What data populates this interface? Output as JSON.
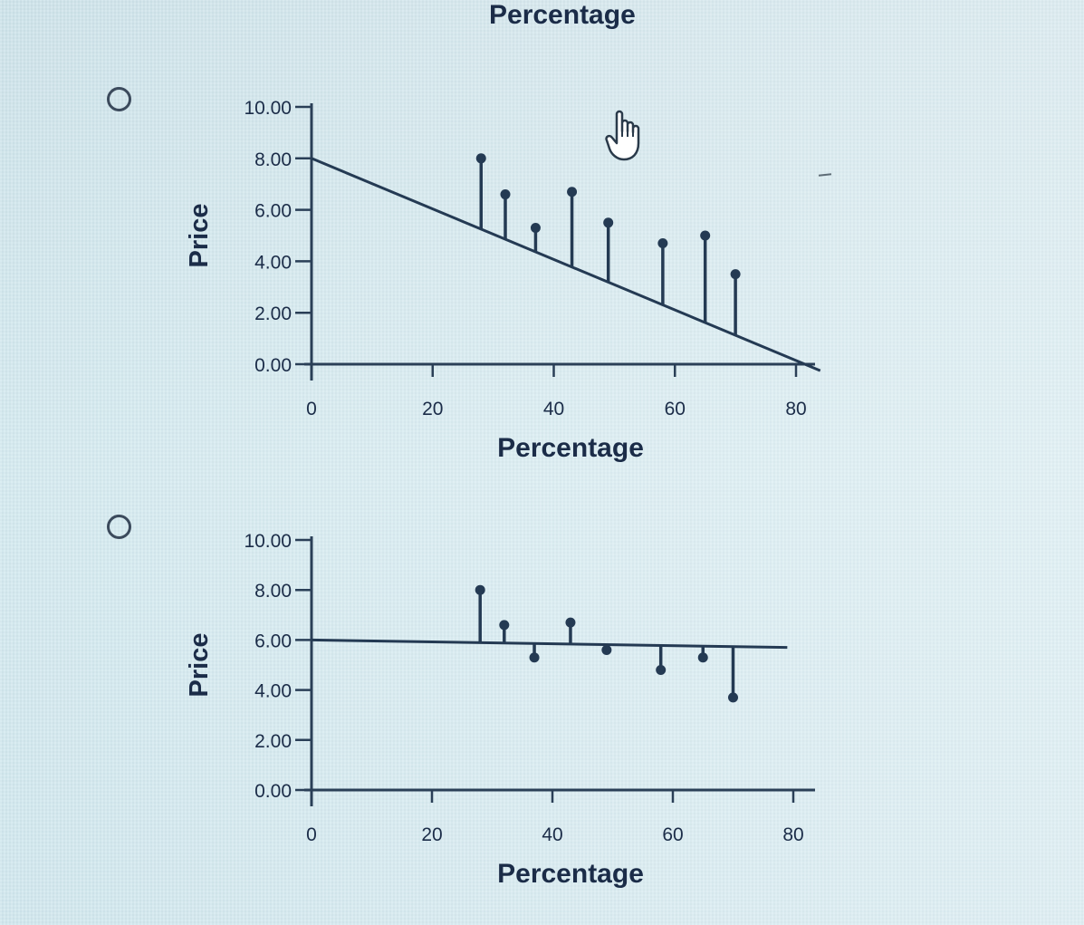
{
  "page": {
    "top_title": "Percentage"
  },
  "colors": {
    "ink": "#1b2c48",
    "line": "#243a53",
    "axis": "#2a3f57"
  },
  "cursor_icon": "pointing-hand-cursor-icon",
  "options": [
    {
      "radio_icon": "radio-button-icon",
      "selected": false
    },
    {
      "radio_icon": "radio-button-icon",
      "selected": false
    }
  ],
  "chart_data": [
    {
      "type": "scatter",
      "xlabel": "Percentage",
      "ylabel": "Price",
      "xlim": [
        0,
        80
      ],
      "ylim": [
        0,
        10
      ],
      "x_ticks": [
        "0",
        "20",
        "40",
        "60",
        "80"
      ],
      "y_ticks": [
        "0.00",
        "2.00",
        "4.00",
        "6.00",
        "8.00",
        "10.00"
      ],
      "points": [
        {
          "x": 28,
          "y": 8.0
        },
        {
          "x": 32,
          "y": 6.6
        },
        {
          "x": 37,
          "y": 5.3
        },
        {
          "x": 43,
          "y": 6.7
        },
        {
          "x": 49,
          "y": 5.5
        },
        {
          "x": 58,
          "y": 4.7
        },
        {
          "x": 65,
          "y": 5.0
        },
        {
          "x": 70,
          "y": 3.5
        }
      ],
      "fit_line": {
        "x": [
          0,
          84
        ],
        "y": [
          8.0,
          -0.25
        ]
      },
      "residual_lines": true
    },
    {
      "type": "scatter",
      "xlabel": "Percentage",
      "ylabel": "Price",
      "xlim": [
        0,
        80
      ],
      "ylim": [
        0,
        10
      ],
      "x_ticks": [
        "0",
        "20",
        "40",
        "60",
        "80"
      ],
      "y_ticks": [
        "0.00",
        "2.00",
        "4.00",
        "6.00",
        "8.00",
        "10.00"
      ],
      "points": [
        {
          "x": 28,
          "y": 8.0
        },
        {
          "x": 32,
          "y": 6.6
        },
        {
          "x": 37,
          "y": 5.3
        },
        {
          "x": 43,
          "y": 6.7
        },
        {
          "x": 49,
          "y": 5.6
        },
        {
          "x": 58,
          "y": 4.8
        },
        {
          "x": 65,
          "y": 5.3
        },
        {
          "x": 70,
          "y": 3.7
        }
      ],
      "fit_line": {
        "x": [
          0,
          79
        ],
        "y": [
          6.0,
          5.7
        ]
      },
      "residual_lines": true
    }
  ]
}
